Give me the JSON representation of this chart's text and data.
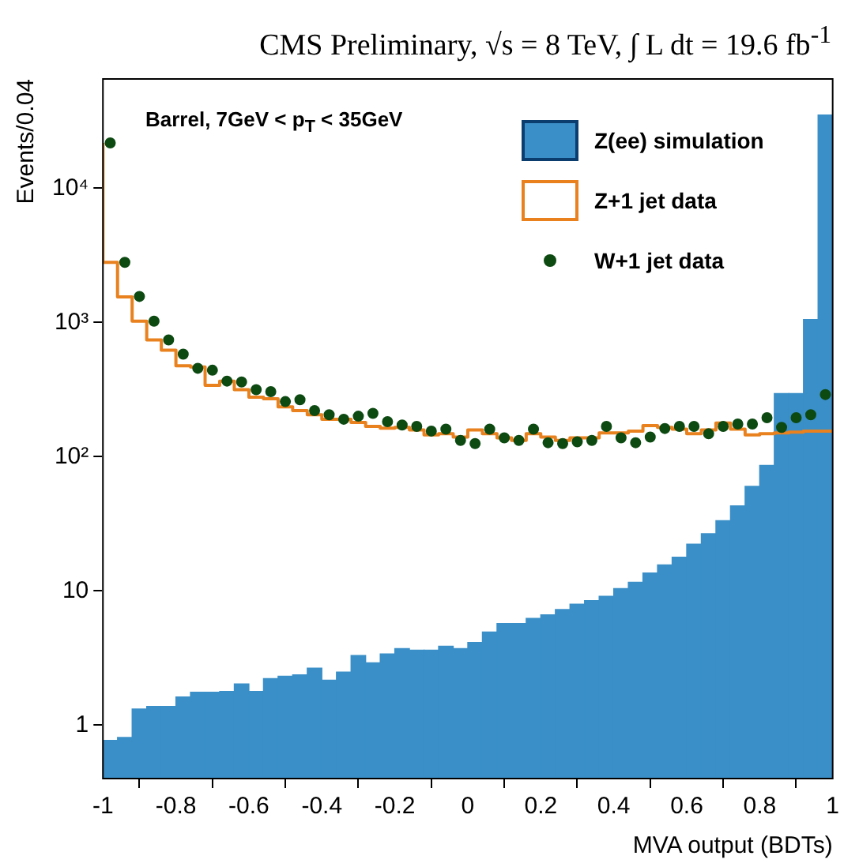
{
  "chart_data": {
    "type": "histogram",
    "title": "CMS Preliminary, √s = 8 TeV, ∫ L dt = 19.6 fb$^{-1}$",
    "xlabel": "MVA output (BDTs)",
    "ylabel": "Events/0.04",
    "annotations": [
      "Barrel,  7GeV < p$_{T}$ < 35GeV"
    ],
    "bins": [
      -1,
      -0.96,
      -0.92,
      -0.88,
      -0.84,
      -0.8,
      -0.76,
      -0.72,
      -0.68,
      -0.64,
      -0.6,
      -0.56,
      -0.52,
      -0.48,
      -0.44,
      -0.4,
      -0.36,
      -0.32,
      -0.28,
      -0.24,
      -0.2,
      -0.16,
      -0.12,
      -0.08,
      -0.04,
      0,
      0.04,
      0.08,
      0.12,
      0.16,
      0.2,
      0.24,
      0.28,
      0.32,
      0.36,
      0.4,
      0.44,
      0.48,
      0.52,
      0.56,
      0.6,
      0.64,
      0.68,
      0.72,
      0.76,
      0.8,
      0.84,
      0.88,
      0.92,
      0.96,
      1
    ],
    "series": [
      {
        "name": "Z(ee) simulation",
        "color": "#3a8fc8",
        "values": [
          0.77,
          0.81,
          1.32,
          1.38,
          1.38,
          1.62,
          1.76,
          1.76,
          1.78,
          2.03,
          1.78,
          2.22,
          2.31,
          2.37,
          2.66,
          2.16,
          2.48,
          3.3,
          2.91,
          3.39,
          3.71,
          3.62,
          3.62,
          3.87,
          3.71,
          4.13,
          4.94,
          5.71,
          5.71,
          6.24,
          6.64,
          7.27,
          7.95,
          8.46,
          9.1,
          10.4,
          11.6,
          13.6,
          15.6,
          17.8,
          22.3,
          26.7,
          33.3,
          42.9,
          60,
          86,
          295,
          295,
          1050,
          35000
        ]
      },
      {
        "name": "Z+1 jet data",
        "type": "step",
        "marker": "none",
        "color": "#e8811e",
        "x": [
          -1,
          -0.96,
          -0.92,
          -0.88,
          -0.84,
          -0.8,
          -0.76,
          -0.72,
          -0.68,
          -0.64,
          -0.6,
          -0.56,
          -0.52,
          -0.48,
          -0.44,
          -0.4,
          -0.36,
          -0.32,
          -0.28,
          -0.24,
          -0.2,
          -0.16,
          -0.12,
          -0.08,
          -0.04,
          0,
          0.04,
          0.08,
          0.12,
          0.16,
          0.2,
          0.24,
          0.28,
          0.32,
          0.36,
          0.4,
          0.44,
          0.48,
          0.52,
          0.56,
          0.6,
          0.64,
          0.68,
          0.72,
          0.76,
          0.8,
          0.84,
          0.88,
          0.92,
          0.96,
          1
        ],
        "values": [
          21700,
          2800,
          1550,
          1020,
          740,
          620,
          475,
          465,
          340,
          365,
          315,
          277,
          270,
          235,
          220,
          205,
          190,
          190,
          180,
          168,
          163,
          165,
          158,
          145,
          148,
          140,
          158,
          148,
          138,
          132,
          148,
          140,
          132,
          138,
          138,
          150,
          150,
          155,
          170,
          165,
          160,
          148,
          158,
          178,
          160,
          145,
          148,
          150,
          152,
          155,
          155
        ]
      },
      {
        "name": "W+1 jet data",
        "type": "scatter",
        "marker": "circle",
        "color": "#0d4a12",
        "x": [
          -0.98,
          -0.94,
          -0.9,
          -0.86,
          -0.82,
          -0.78,
          -0.74,
          -0.7,
          -0.66,
          -0.62,
          -0.58,
          -0.54,
          -0.5,
          -0.46,
          -0.42,
          -0.38,
          -0.34,
          -0.3,
          -0.26,
          -0.22,
          -0.18,
          -0.14,
          -0.1,
          -0.06,
          -0.02,
          0.02,
          0.06,
          0.1,
          0.14,
          0.18,
          0.22,
          0.26,
          0.3,
          0.34,
          0.38,
          0.42,
          0.46,
          0.5,
          0.54,
          0.58,
          0.62,
          0.66,
          0.7,
          0.74,
          0.78,
          0.82,
          0.86,
          0.9,
          0.94,
          0.98
        ],
        "values": [
          21700,
          2800,
          1560,
          1020,
          740,
          580,
          455,
          440,
          365,
          360,
          315,
          305,
          257,
          265,
          220,
          205,
          190,
          200,
          210,
          182,
          172,
          168,
          155,
          160,
          132,
          125,
          160,
          138,
          132,
          160,
          127,
          125,
          129,
          132,
          168,
          138,
          127,
          140,
          162,
          168,
          168,
          148,
          168,
          175,
          175,
          195,
          165,
          195,
          205,
          290
        ]
      }
    ],
    "xlim": [
      -1,
      1
    ],
    "xticks": [
      -1,
      -0.8,
      -0.6,
      -0.4,
      -0.2,
      0,
      0.2,
      0.4,
      0.6,
      0.8,
      1
    ],
    "log": "y",
    "ylim": [
      0.4,
      65000
    ],
    "yticks": [
      1,
      10,
      {
        "value": 100,
        "label": "10²"
      },
      {
        "value": 1000,
        "label": "10³"
      },
      {
        "value": 10000,
        "label": "10⁴"
      }
    ],
    "grid": false,
    "legend": "top right"
  }
}
